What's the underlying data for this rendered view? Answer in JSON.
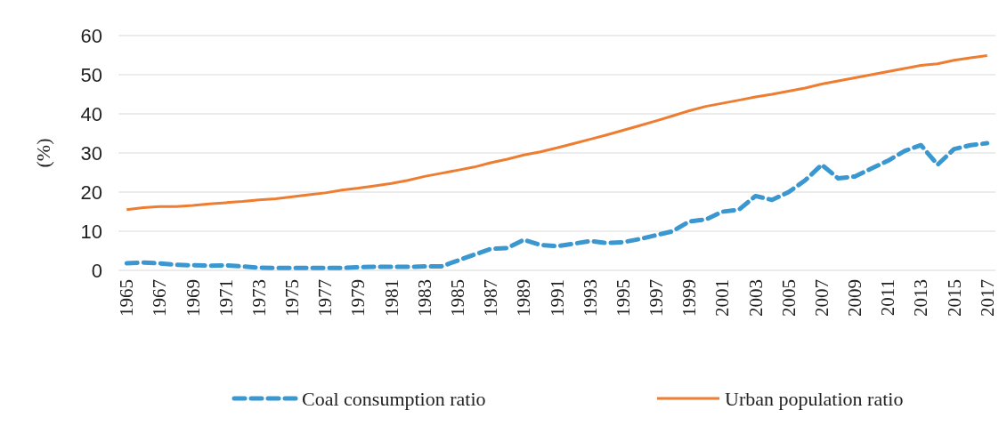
{
  "chart_data": {
    "type": "line",
    "ylabel": "(%)",
    "categories": [
      "1965",
      null,
      "1967",
      null,
      "1969",
      null,
      "1971",
      null,
      "1973",
      null,
      "1975",
      null,
      "1977",
      null,
      "1979",
      null,
      "1981",
      null,
      "1983",
      null,
      "1985",
      null,
      "1987",
      null,
      "1989",
      null,
      "1991",
      null,
      "1993",
      null,
      "1995",
      null,
      "1997",
      null,
      "1999",
      null,
      "2001",
      null,
      "2003",
      null,
      "2005",
      null,
      "2007",
      null,
      "2009",
      null,
      "2011",
      null,
      "2013",
      null,
      "2015",
      null,
      "2017"
    ],
    "series": [
      {
        "name": "Coal consumption ratio",
        "color": "#3a97d0",
        "line_style": "dashed",
        "values": [
          1.8,
          2.0,
          1.8,
          1.4,
          1.3,
          1.2,
          1.3,
          1.0,
          0.7,
          0.6,
          0.6,
          0.6,
          0.6,
          0.6,
          0.8,
          0.9,
          0.9,
          0.9,
          1.0,
          1.0,
          2.5,
          4.0,
          5.5,
          5.7,
          7.8,
          6.5,
          6.2,
          6.8,
          7.5,
          7.0,
          7.2,
          8.0,
          9.0,
          10.0,
          12.5,
          13.0,
          15.0,
          15.5,
          19.0,
          18.0,
          20.0,
          23.0,
          27.0,
          23.5,
          24.0,
          26.0,
          28.0,
          30.5,
          32.0,
          27.0,
          31.0,
          32.0,
          32.5
        ]
      },
      {
        "name": "Urban population ratio",
        "color": "#ed7d31",
        "line_style": "solid",
        "values": [
          15.5,
          16.0,
          16.3,
          16.3,
          16.6,
          17.0,
          17.3,
          17.6,
          18.0,
          18.3,
          18.8,
          19.3,
          19.8,
          20.5,
          21.0,
          21.6,
          22.2,
          23.0,
          24.0,
          24.8,
          25.6,
          26.4,
          27.5,
          28.4,
          29.5,
          30.3,
          31.3,
          32.4,
          33.5,
          34.6,
          35.8,
          37.0,
          38.2,
          39.5,
          40.8,
          41.9,
          42.7,
          43.5,
          44.3,
          45.0,
          45.8,
          46.6,
          47.6,
          48.4,
          49.2,
          50.0,
          50.8,
          51.6,
          52.4,
          52.8,
          53.7,
          54.3,
          54.9
        ]
      }
    ],
    "ylim": [
      0,
      60
    ],
    "yticks": [
      0,
      10,
      20,
      30,
      40,
      50,
      60
    ],
    "grid": "y",
    "legend": "bottom"
  }
}
